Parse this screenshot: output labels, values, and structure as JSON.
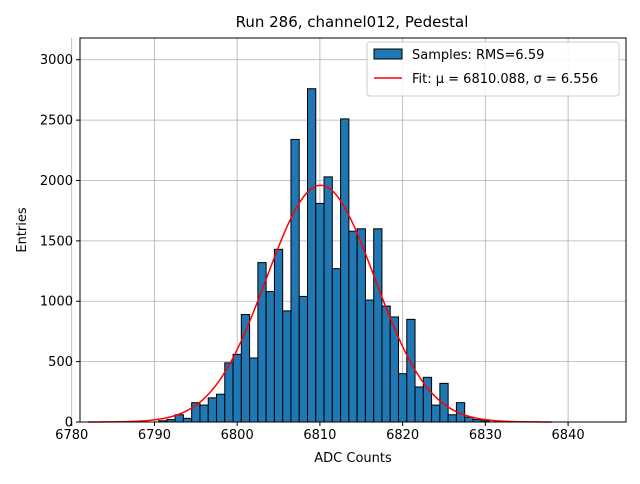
{
  "chart_data": {
    "type": "bar",
    "title": "Run 286, channel012, Pedestal",
    "xlabel": "ADC Counts",
    "ylabel": "Entries",
    "xlim": [
      6781,
      6847
    ],
    "ylim": [
      0,
      3180
    ],
    "xticks": [
      6780,
      6790,
      6800,
      6810,
      6820,
      6830,
      6840
    ],
    "yticks": [
      0,
      500,
      1000,
      1500,
      2000,
      2500,
      3000
    ],
    "grid": true,
    "legend_position": "top-right",
    "histogram": {
      "name": "Samples: RMS=6.59",
      "color": "#1f77b4",
      "bin_width": 1,
      "x": [
        6791,
        6792,
        6793,
        6794,
        6795,
        6796,
        6797,
        6798,
        6799,
        6800,
        6801,
        6802,
        6803,
        6804,
        6805,
        6806,
        6807,
        6808,
        6809,
        6810,
        6811,
        6812,
        6813,
        6814,
        6815,
        6816,
        6817,
        6818,
        6819,
        6820,
        6821,
        6822,
        6823,
        6824,
        6825,
        6826,
        6827,
        6828,
        6829,
        6830
      ],
      "values": [
        10,
        20,
        60,
        30,
        160,
        140,
        200,
        230,
        490,
        560,
        890,
        530,
        1320,
        1080,
        1430,
        920,
        2340,
        1040,
        2760,
        1810,
        2030,
        1270,
        2510,
        1580,
        1600,
        1010,
        1600,
        960,
        870,
        400,
        850,
        290,
        370,
        140,
        320,
        60,
        160,
        40,
        20,
        10
      ]
    },
    "fit": {
      "name": "Fit: μ = 6810.088, σ = 6.556",
      "color": "#ff0000",
      "mu": 6810.088,
      "sigma": 6.556,
      "amplitude": 1960,
      "x_range": [
        6782,
        6838
      ]
    }
  }
}
